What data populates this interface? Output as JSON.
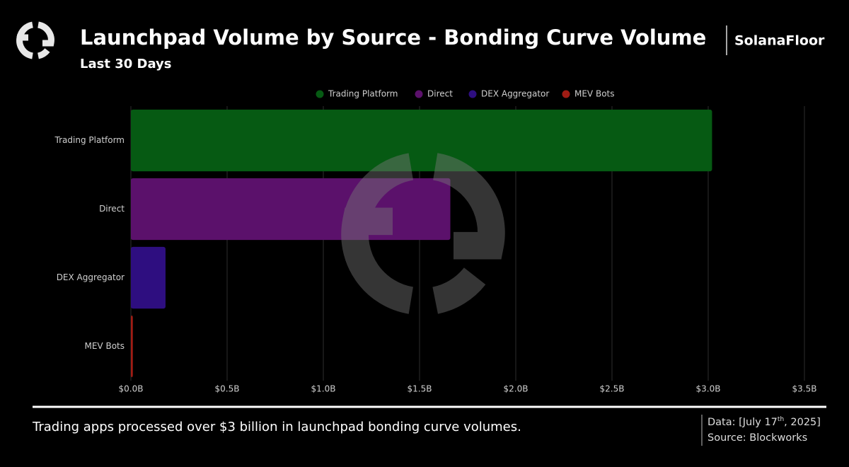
{
  "brand": "SolanaFloor",
  "chart_data": {
    "type": "bar",
    "orientation": "horizontal",
    "title": "Launchpad Volume by Source - Bonding Curve Volume",
    "subtitle": "Last 30 Days",
    "categories": [
      "Trading Platform",
      "Direct",
      "DEX Aggregator",
      "MEV Bots"
    ],
    "values": [
      3.02,
      1.66,
      0.18,
      0.01
    ],
    "colors": [
      "#065a13",
      "#5b116b",
      "#2e0e80",
      "#a01c14"
    ],
    "xlim": [
      0,
      3.5
    ],
    "xticks": [
      {
        "value": 0,
        "label": "$0.0B"
      },
      {
        "value": 0.5,
        "label": "$0.5B"
      },
      {
        "value": 1,
        "label": "$1.0B"
      },
      {
        "value": 1.5,
        "label": "$1.5B"
      },
      {
        "value": 2,
        "label": "$2.0B"
      },
      {
        "value": 2.5,
        "label": "$2.5B"
      },
      {
        "value": 3,
        "label": "$3.0B"
      },
      {
        "value": 3.5,
        "label": "$3.5B"
      }
    ],
    "grid": true,
    "legend": "top"
  },
  "footer": {
    "note": "Trading apps processed over $3 billion in launchpad bonding curve volumes.",
    "date": {
      "prefix": "Data: [July 17",
      "sup": "th",
      "suffix": ", 2025]"
    },
    "source": "Source: Blockworks"
  }
}
